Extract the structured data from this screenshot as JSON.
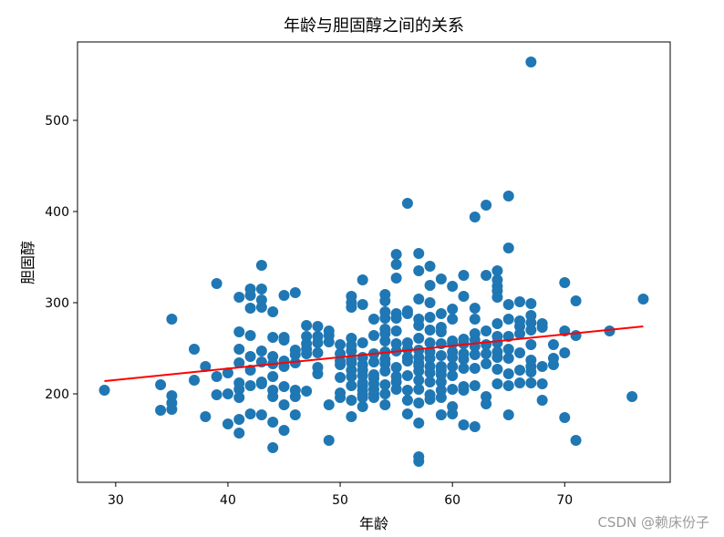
{
  "chart_data": {
    "type": "scatter",
    "title": "年龄与胆固醇之间的关系",
    "xlabel": "年龄",
    "ylabel": "胆固醇",
    "xlim": [
      26.6,
      79.4
    ],
    "ylim": [
      103.0,
      586.0
    ],
    "xticks": [
      30,
      40,
      50,
      60,
      70
    ],
    "yticks": [
      200,
      300,
      400,
      500
    ],
    "grid": false,
    "legend": "none",
    "colors": {
      "points": "#1f77b4",
      "trend": "#ff0000"
    },
    "trend_line": {
      "x": [
        29,
        77
      ],
      "y": [
        214,
        274
      ]
    },
    "points": [
      [
        29,
        204
      ],
      [
        34,
        182
      ],
      [
        34,
        210
      ],
      [
        35,
        183
      ],
      [
        35,
        190
      ],
      [
        35,
        198
      ],
      [
        35,
        282
      ],
      [
        37,
        215
      ],
      [
        37,
        249
      ],
      [
        38,
        175
      ],
      [
        38,
        230
      ],
      [
        39,
        199
      ],
      [
        39,
        219
      ],
      [
        39,
        321
      ],
      [
        40,
        167
      ],
      [
        40,
        200
      ],
      [
        40,
        223
      ],
      [
        41,
        157
      ],
      [
        41,
        172
      ],
      [
        41,
        196
      ],
      [
        41,
        205
      ],
      [
        41,
        212
      ],
      [
        41,
        234
      ],
      [
        41,
        249
      ],
      [
        41,
        268
      ],
      [
        41,
        306
      ],
      [
        42,
        178
      ],
      [
        42,
        209
      ],
      [
        42,
        226
      ],
      [
        42,
        241
      ],
      [
        42,
        264
      ],
      [
        42,
        294
      ],
      [
        42,
        308
      ],
      [
        42,
        315
      ],
      [
        43,
        177
      ],
      [
        43,
        211
      ],
      [
        43,
        213
      ],
      [
        43,
        235
      ],
      [
        43,
        247
      ],
      [
        43,
        295
      ],
      [
        43,
        303
      ],
      [
        43,
        315
      ],
      [
        43,
        341
      ],
      [
        44,
        141
      ],
      [
        44,
        169
      ],
      [
        44,
        197
      ],
      [
        44,
        204
      ],
      [
        44,
        219
      ],
      [
        44,
        233
      ],
      [
        44,
        241
      ],
      [
        44,
        262
      ],
      [
        44,
        290
      ],
      [
        45,
        160
      ],
      [
        45,
        188
      ],
      [
        45,
        208
      ],
      [
        45,
        230
      ],
      [
        45,
        236
      ],
      [
        45,
        259
      ],
      [
        45,
        262
      ],
      [
        45,
        308
      ],
      [
        46,
        177
      ],
      [
        46,
        197
      ],
      [
        46,
        204
      ],
      [
        46,
        234
      ],
      [
        46,
        243
      ],
      [
        46,
        248
      ],
      [
        46,
        311
      ],
      [
        47,
        203
      ],
      [
        47,
        244
      ],
      [
        47,
        249
      ],
      [
        47,
        255
      ],
      [
        47,
        263
      ],
      [
        47,
        275
      ],
      [
        48,
        222
      ],
      [
        48,
        229
      ],
      [
        48,
        245
      ],
      [
        48,
        256
      ],
      [
        48,
        263
      ],
      [
        48,
        274
      ],
      [
        49,
        149
      ],
      [
        49,
        188
      ],
      [
        49,
        257
      ],
      [
        49,
        264
      ],
      [
        49,
        269
      ],
      [
        50,
        196
      ],
      [
        50,
        201
      ],
      [
        50,
        218
      ],
      [
        50,
        232
      ],
      [
        50,
        236
      ],
      [
        50,
        244
      ],
      [
        50,
        254
      ],
      [
        51,
        175
      ],
      [
        51,
        193
      ],
      [
        51,
        209
      ],
      [
        51,
        219
      ],
      [
        51,
        226
      ],
      [
        51,
        234
      ],
      [
        51,
        238
      ],
      [
        51,
        247
      ],
      [
        51,
        253
      ],
      [
        51,
        261
      ],
      [
        51,
        295
      ],
      [
        51,
        300
      ],
      [
        51,
        307
      ],
      [
        52,
        186
      ],
      [
        52,
        196
      ],
      [
        52,
        199
      ],
      [
        52,
        204
      ],
      [
        52,
        209
      ],
      [
        52,
        212
      ],
      [
        52,
        220
      ],
      [
        52,
        226
      ],
      [
        52,
        232
      ],
      [
        52,
        240
      ],
      [
        52,
        256
      ],
      [
        52,
        298
      ],
      [
        52,
        325
      ],
      [
        53,
        196
      ],
      [
        53,
        200
      ],
      [
        53,
        205
      ],
      [
        53,
        211
      ],
      [
        53,
        217
      ],
      [
        53,
        221
      ],
      [
        53,
        235
      ],
      [
        53,
        244
      ],
      [
        53,
        264
      ],
      [
        53,
        282
      ],
      [
        54,
        188
      ],
      [
        54,
        200
      ],
      [
        54,
        210
      ],
      [
        54,
        225
      ],
      [
        54,
        233
      ],
      [
        54,
        238
      ],
      [
        54,
        246
      ],
      [
        54,
        258
      ],
      [
        54,
        266
      ],
      [
        54,
        271
      ],
      [
        54,
        283
      ],
      [
        54,
        290
      ],
      [
        54,
        302
      ],
      [
        54,
        309
      ],
      [
        55,
        205
      ],
      [
        55,
        213
      ],
      [
        55,
        219
      ],
      [
        55,
        229
      ],
      [
        55,
        247
      ],
      [
        55,
        255
      ],
      [
        55,
        269
      ],
      [
        55,
        283
      ],
      [
        55,
        288
      ],
      [
        55,
        327
      ],
      [
        55,
        342
      ],
      [
        55,
        353
      ],
      [
        56,
        178
      ],
      [
        56,
        193
      ],
      [
        56,
        204
      ],
      [
        56,
        220
      ],
      [
        56,
        236
      ],
      [
        56,
        240
      ],
      [
        56,
        249
      ],
      [
        56,
        256
      ],
      [
        56,
        288
      ],
      [
        56,
        291
      ],
      [
        56,
        409
      ],
      [
        57,
        126
      ],
      [
        57,
        131
      ],
      [
        57,
        168
      ],
      [
        57,
        190
      ],
      [
        57,
        205
      ],
      [
        57,
        215
      ],
      [
        57,
        225
      ],
      [
        57,
        231
      ],
      [
        57,
        234
      ],
      [
        57,
        240
      ],
      [
        57,
        248
      ],
      [
        57,
        261
      ],
      [
        57,
        275
      ],
      [
        57,
        282
      ],
      [
        57,
        304
      ],
      [
        57,
        335
      ],
      [
        57,
        354
      ],
      [
        58,
        194
      ],
      [
        58,
        199
      ],
      [
        58,
        213
      ],
      [
        58,
        223
      ],
      [
        58,
        230
      ],
      [
        58,
        239
      ],
      [
        58,
        246
      ],
      [
        58,
        256
      ],
      [
        58,
        270
      ],
      [
        58,
        284
      ],
      [
        58,
        300
      ],
      [
        58,
        319
      ],
      [
        58,
        340
      ],
      [
        59,
        177
      ],
      [
        59,
        196
      ],
      [
        59,
        204
      ],
      [
        59,
        213
      ],
      [
        59,
        221
      ],
      [
        59,
        226
      ],
      [
        59,
        230
      ],
      [
        59,
        242
      ],
      [
        59,
        255
      ],
      [
        59,
        268
      ],
      [
        59,
        273
      ],
      [
        59,
        288
      ],
      [
        59,
        326
      ],
      [
        60,
        178
      ],
      [
        60,
        186
      ],
      [
        60,
        205
      ],
      [
        60,
        220
      ],
      [
        60,
        230
      ],
      [
        60,
        240
      ],
      [
        60,
        246
      ],
      [
        60,
        255
      ],
      [
        60,
        258
      ],
      [
        60,
        282
      ],
      [
        60,
        293
      ],
      [
        60,
        318
      ],
      [
        61,
        166
      ],
      [
        61,
        204
      ],
      [
        61,
        208
      ],
      [
        61,
        228
      ],
      [
        61,
        238
      ],
      [
        61,
        244
      ],
      [
        61,
        255
      ],
      [
        61,
        260
      ],
      [
        61,
        307
      ],
      [
        61,
        330
      ],
      [
        62,
        164
      ],
      [
        62,
        209
      ],
      [
        62,
        228
      ],
      [
        62,
        243
      ],
      [
        62,
        252
      ],
      [
        62,
        259
      ],
      [
        62,
        266
      ],
      [
        62,
        282
      ],
      [
        62,
        294
      ],
      [
        62,
        394
      ],
      [
        63,
        189
      ],
      [
        63,
        197
      ],
      [
        63,
        233
      ],
      [
        63,
        244
      ],
      [
        63,
        254
      ],
      [
        63,
        269
      ],
      [
        63,
        330
      ],
      [
        63,
        407
      ],
      [
        64,
        211
      ],
      [
        64,
        227
      ],
      [
        64,
        240
      ],
      [
        64,
        246
      ],
      [
        64,
        256
      ],
      [
        64,
        263
      ],
      [
        64,
        277
      ],
      [
        64,
        306
      ],
      [
        64,
        313
      ],
      [
        64,
        318
      ],
      [
        64,
        325
      ],
      [
        64,
        335
      ],
      [
        65,
        177
      ],
      [
        65,
        209
      ],
      [
        65,
        222
      ],
      [
        65,
        239
      ],
      [
        65,
        249
      ],
      [
        65,
        263
      ],
      [
        65,
        282
      ],
      [
        65,
        298
      ],
      [
        65,
        360
      ],
      [
        65,
        417
      ],
      [
        66,
        212
      ],
      [
        66,
        226
      ],
      [
        66,
        245
      ],
      [
        66,
        266
      ],
      [
        66,
        274
      ],
      [
        66,
        280
      ],
      [
        66,
        301
      ],
      [
        67,
        212
      ],
      [
        67,
        224
      ],
      [
        67,
        230
      ],
      [
        67,
        237
      ],
      [
        67,
        254
      ],
      [
        67,
        270
      ],
      [
        67,
        278
      ],
      [
        67,
        286
      ],
      [
        67,
        299
      ],
      [
        67,
        564
      ],
      [
        68,
        193
      ],
      [
        68,
        211
      ],
      [
        68,
        230
      ],
      [
        68,
        273
      ],
      [
        68,
        277
      ],
      [
        69,
        232
      ],
      [
        69,
        239
      ],
      [
        69,
        254
      ],
      [
        70,
        174
      ],
      [
        70,
        245
      ],
      [
        70,
        269
      ],
      [
        70,
        322
      ],
      [
        71,
        149
      ],
      [
        71,
        264
      ],
      [
        71,
        302
      ],
      [
        74,
        269
      ],
      [
        76,
        197
      ],
      [
        77,
        304
      ]
    ]
  },
  "watermark": "CSDN @赖床份子"
}
